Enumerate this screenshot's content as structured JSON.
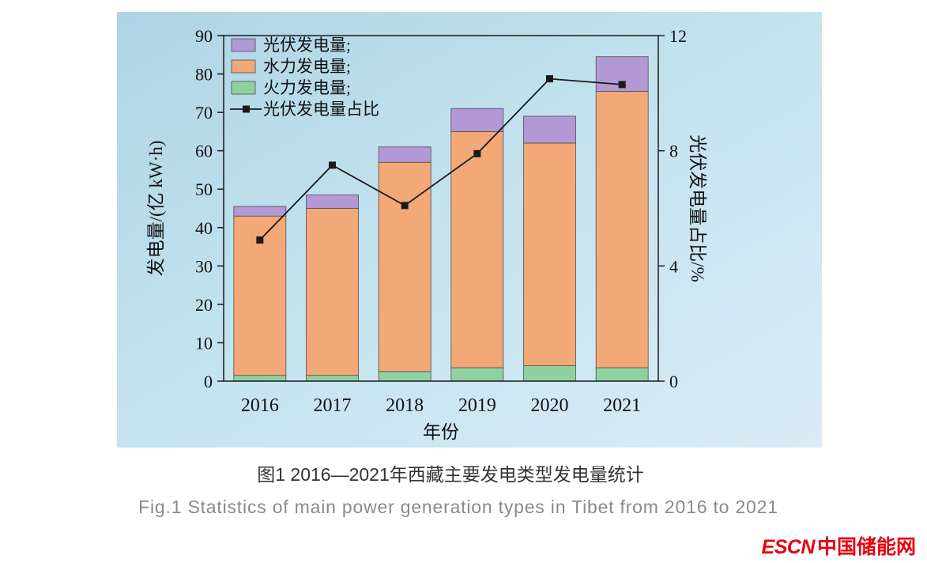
{
  "chart_data": {
    "type": "bar",
    "title": "",
    "categories": [
      "2016",
      "2017",
      "2018",
      "2019",
      "2020",
      "2021"
    ],
    "bar_series": [
      {
        "name": "火力发电量",
        "color": "#8fd1a0",
        "values": [
          1.5,
          1.5,
          2.5,
          3.5,
          4.0,
          3.5
        ]
      },
      {
        "name": "水力发电量",
        "color": "#f3a877",
        "values": [
          41.5,
          43.5,
          54.5,
          61.5,
          58.0,
          72.0
        ]
      },
      {
        "name": "光伏发电量",
        "color": "#b299d6",
        "values": [
          2.5,
          3.5,
          4.0,
          6.0,
          7.0,
          9.0
        ]
      }
    ],
    "line_series": {
      "name": "光伏发电量占比",
      "color": "#1a1a1a",
      "axis": "right",
      "values": [
        4.9,
        7.5,
        6.1,
        7.9,
        10.5,
        10.3
      ]
    },
    "left_axis": {
      "label": "发电量/(亿 kW·h)",
      "min": 0,
      "max": 90,
      "ticks": [
        0,
        10,
        20,
        30,
        40,
        50,
        60,
        70,
        80,
        90
      ]
    },
    "right_axis": {
      "label": "光伏发电量占比/%",
      "min": 0,
      "max": 12,
      "ticks": [
        0,
        4,
        8,
        12
      ]
    },
    "xlabel": "年份",
    "legend": [
      {
        "label": "光伏发电量;",
        "swatch": "#b299d6",
        "kind": "box"
      },
      {
        "label": "水力发电量;",
        "swatch": "#f3a877",
        "kind": "box"
      },
      {
        "label": "火力发电量;",
        "swatch": "#8fd1a0",
        "kind": "box"
      },
      {
        "label": "光伏发电量占比",
        "swatch": "#1a1a1a",
        "kind": "line"
      }
    ],
    "grid": false,
    "legend_position": "top-left"
  },
  "captions": {
    "zh": "图1  2016—2021年西藏主要发电类型发电量统计",
    "en": "Fig.1  Statistics of main power generation types in Tibet from 2016 to 2021"
  },
  "logo": {
    "escn": "ESCN",
    "cn": "中国储能网"
  }
}
